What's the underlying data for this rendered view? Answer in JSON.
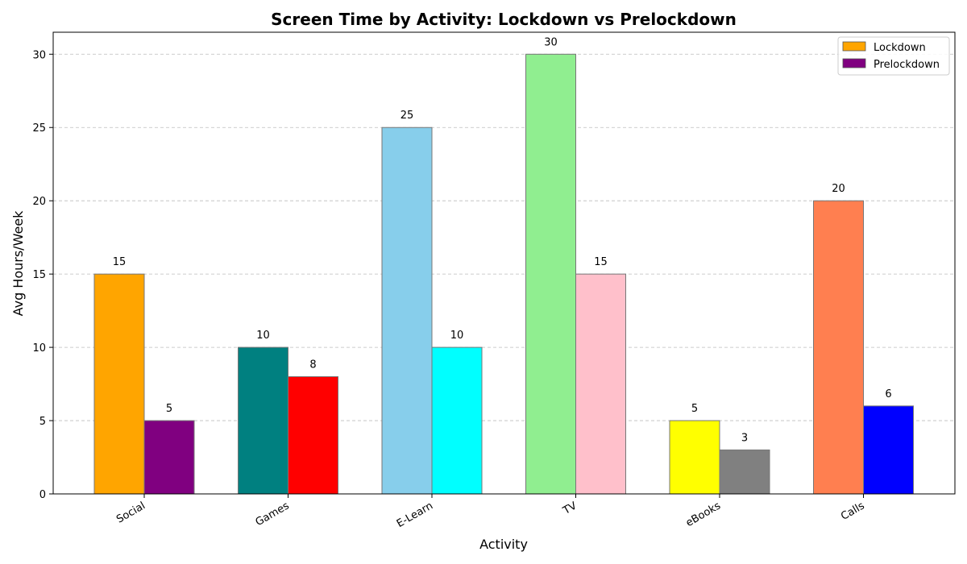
{
  "chart_data": {
    "type": "bar",
    "title": "Screen Time by Activity: Lockdown vs Prelockdown",
    "xlabel": "Activity",
    "ylabel": "Avg Hours/Week",
    "categories": [
      "Social",
      "Games",
      "E-Learn",
      "TV",
      "eBooks",
      "Calls"
    ],
    "series": [
      {
        "name": "Lockdown",
        "values": [
          15,
          10,
          25,
          30,
          5,
          20
        ],
        "colors": [
          "#FFA500",
          "#008080",
          "#87CEEB",
          "#90EE90",
          "#FFFF00",
          "#FF7F50"
        ]
      },
      {
        "name": "Prelockdown",
        "values": [
          5,
          8,
          10,
          15,
          3,
          6
        ],
        "colors": [
          "#800080",
          "#FF0000",
          "#00FFFF",
          "#FFC0CB",
          "#808080",
          "#0000FF"
        ]
      }
    ],
    "legend_colors": [
      "#FFA500",
      "#800080"
    ],
    "yticks": [
      0,
      5,
      10,
      15,
      20,
      25,
      30
    ],
    "ylim": [
      0,
      31.5
    ],
    "grid": "y-dashed",
    "legend_position": "top-right"
  }
}
